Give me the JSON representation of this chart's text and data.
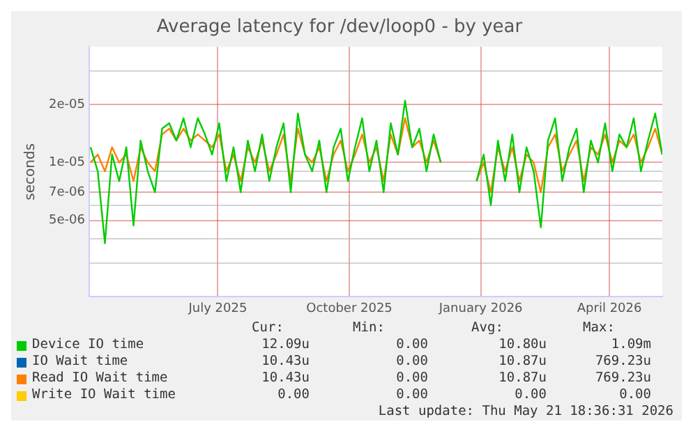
{
  "chart_data": {
    "type": "line",
    "title": "Average latency for /dev/loop0 - by year",
    "ylabel": "seconds",
    "x": [
      "2025-04-03",
      "2025-04-08",
      "2025-04-13",
      "2025-04-18",
      "2025-04-23",
      "2025-04-28",
      "2025-05-03",
      "2025-05-08",
      "2025-05-13",
      "2025-05-18",
      "2025-05-23",
      "2025-05-28",
      "2025-06-02",
      "2025-06-07",
      "2025-06-12",
      "2025-06-17",
      "2025-06-22",
      "2025-06-27",
      "2025-07-02",
      "2025-07-07",
      "2025-07-12",
      "2025-07-17",
      "2025-07-22",
      "2025-07-27",
      "2025-08-01",
      "2025-08-06",
      "2025-08-11",
      "2025-08-16",
      "2025-08-21",
      "2025-08-26",
      "2025-08-31",
      "2025-09-05",
      "2025-09-10",
      "2025-09-15",
      "2025-09-20",
      "2025-09-25",
      "2025-09-30",
      "2025-10-05",
      "2025-10-10",
      "2025-10-15",
      "2025-10-20",
      "2025-10-25",
      "2025-10-30",
      "2025-11-04",
      "2025-11-09",
      "2025-11-14",
      "2025-11-19",
      "2025-11-24",
      "2025-11-29",
      "2025-12-04",
      "2025-12-15",
      "2025-12-29",
      "2026-01-03",
      "2026-01-08",
      "2026-01-13",
      "2026-01-18",
      "2026-01-23",
      "2026-01-28",
      "2026-02-02",
      "2026-02-07",
      "2026-02-12",
      "2026-02-17",
      "2026-02-22",
      "2026-02-27",
      "2026-03-04",
      "2026-03-09",
      "2026-03-14",
      "2026-03-19",
      "2026-03-24",
      "2026-03-29",
      "2026-04-03",
      "2026-04-08",
      "2026-04-13",
      "2026-04-18",
      "2026-04-23",
      "2026-04-28",
      "2026-05-03",
      "2026-05-08"
    ],
    "series": [
      {
        "name": "Device IO time",
        "color": "#00cc00",
        "values": [
          1.2e-05,
          9e-06,
          3.8e-06,
          1.1e-05,
          8e-06,
          1.2e-05,
          4.7e-06,
          1.3e-05,
          9e-06,
          7e-06,
          1.5e-05,
          1.6e-05,
          1.3e-05,
          1.7e-05,
          1.2e-05,
          1.7e-05,
          1.4e-05,
          1.1e-05,
          1.6e-05,
          8e-06,
          1.2e-05,
          7e-06,
          1.3e-05,
          9e-06,
          1.4e-05,
          8e-06,
          1.2e-05,
          1.6e-05,
          7e-06,
          1.8e-05,
          1.1e-05,
          9e-06,
          1.3e-05,
          7e-06,
          1.2e-05,
          1.5e-05,
          8e-06,
          1.2e-05,
          1.7e-05,
          9e-06,
          1.3e-05,
          7e-06,
          1.6e-05,
          1.1e-05,
          2.1e-05,
          1.2e-05,
          1.5e-05,
          9e-06,
          1.4e-05,
          1e-05,
          null,
          8e-06,
          1.1e-05,
          6e-06,
          1.3e-05,
          8e-06,
          1.4e-05,
          7e-06,
          1.2e-05,
          9e-06,
          4.6e-06,
          1.3e-05,
          1.7e-05,
          8e-06,
          1.2e-05,
          1.5e-05,
          7e-06,
          1.3e-05,
          1e-05,
          1.6e-05,
          9e-06,
          1.4e-05,
          1.2e-05,
          1.7e-05,
          9e-06,
          1.3e-05,
          1.8e-05,
          1.1e-05
        ]
      },
      {
        "name": "IO Wait time",
        "color": "#0066b3",
        "values": [
          null,
          null,
          null,
          null,
          null,
          null,
          null,
          null,
          null,
          null,
          null,
          null,
          null,
          null,
          null,
          null,
          null,
          null,
          null,
          null,
          null,
          null,
          null,
          null,
          null,
          null,
          null,
          null,
          null,
          null,
          null,
          null,
          null,
          null,
          null,
          null,
          null,
          null,
          null,
          null,
          null,
          null,
          null,
          null,
          null,
          null,
          null,
          null,
          null,
          null,
          null,
          null,
          null,
          null,
          null,
          null,
          null,
          null,
          null,
          null,
          null,
          null,
          null,
          null,
          null,
          null,
          null,
          null,
          null,
          null,
          null,
          null,
          null,
          null,
          null,
          null,
          null,
          null
        ]
      },
      {
        "name": "Read IO Wait time",
        "color": "#ff8000",
        "values": [
          1e-05,
          1.1e-05,
          9e-06,
          1.2e-05,
          1e-05,
          1.1e-05,
          8e-06,
          1.2e-05,
          1e-05,
          9e-06,
          1.4e-05,
          1.5e-05,
          1.3e-05,
          1.5e-05,
          1.3e-05,
          1.4e-05,
          1.3e-05,
          1.2e-05,
          1.4e-05,
          9e-06,
          1.1e-05,
          8e-06,
          1.2e-05,
          1e-05,
          1.3e-05,
          9e-06,
          1.1e-05,
          1.4e-05,
          8e-06,
          1.5e-05,
          1.1e-05,
          1e-05,
          1.2e-05,
          8e-06,
          1.1e-05,
          1.3e-05,
          9e-06,
          1.1e-05,
          1.4e-05,
          1e-05,
          1.2e-05,
          8e-06,
          1.4e-05,
          1.1e-05,
          1.7e-05,
          1.2e-05,
          1.3e-05,
          1e-05,
          1.3e-05,
          1e-05,
          null,
          8e-06,
          1e-05,
          7e-06,
          1.2e-05,
          9e-06,
          1.2e-05,
          8e-06,
          1.1e-05,
          1e-05,
          7e-06,
          1.2e-05,
          1.4e-05,
          9e-06,
          1.1e-05,
          1.3e-05,
          8e-06,
          1.2e-05,
          1.1e-05,
          1.4e-05,
          1e-05,
          1.3e-05,
          1.2e-05,
          1.4e-05,
          1e-05,
          1.2e-05,
          1.5e-05,
          1.1e-05
        ]
      },
      {
        "name": "Write IO Wait time",
        "color": "#ffcc00",
        "values": [
          null,
          null,
          null,
          null,
          null,
          null,
          null,
          null,
          null,
          null,
          null,
          null,
          null,
          null,
          null,
          null,
          null,
          null,
          null,
          null,
          null,
          null,
          null,
          null,
          null,
          null,
          null,
          null,
          null,
          null,
          null,
          null,
          null,
          null,
          null,
          null,
          null,
          null,
          null,
          null,
          null,
          null,
          null,
          null,
          null,
          null,
          null,
          null,
          null,
          null,
          null,
          null,
          null,
          null,
          null,
          null,
          null,
          null,
          null,
          null,
          null,
          null,
          null,
          null,
          null,
          null,
          null,
          null,
          null,
          null,
          null,
          null,
          null,
          null,
          null,
          null,
          null,
          null
        ]
      }
    ],
    "xlim": [
      "2025-04-02",
      "2026-05-08"
    ],
    "xticks": [
      {
        "value": "2025-07-01",
        "label": "July 2025"
      },
      {
        "value": "2025-10-01",
        "label": "October 2025"
      },
      {
        "value": "2026-01-01",
        "label": "January 2026"
      },
      {
        "value": "2026-04-01",
        "label": "April 2026"
      }
    ],
    "log": "y",
    "ylim": [
      2e-06,
      4e-05
    ],
    "yticks": [
      {
        "value": 3e-06,
        "label": null
      },
      {
        "value": 4e-06,
        "label": null
      },
      {
        "value": 5e-06,
        "label": "5e-06"
      },
      {
        "value": 6e-06,
        "label": null
      },
      {
        "value": 7e-06,
        "label": "7e-06"
      },
      {
        "value": 8e-06,
        "label": null
      },
      {
        "value": 9e-06,
        "label": null
      },
      {
        "value": 1e-05,
        "label": "1e-05"
      },
      {
        "value": 2e-05,
        "label": "2e-05"
      },
      {
        "value": 3e-05,
        "label": null
      }
    ],
    "grid": true,
    "legend": "bottom",
    "marker": "none",
    "line_style": "solid",
    "annotations": [
      "Cur:",
      "Min:",
      "Avg:",
      "Max:",
      "12.09u",
      "0.00",
      "10.80u",
      "1.09m",
      "10.43u",
      "0.00",
      "10.87u",
      "769.23u",
      "10.43u",
      "0.00",
      "10.87u",
      "769.23u",
      "0.00",
      "0.00",
      "0.00",
      "0.00",
      "Last update: Thu May 21 18:36:31 2026"
    ]
  }
}
